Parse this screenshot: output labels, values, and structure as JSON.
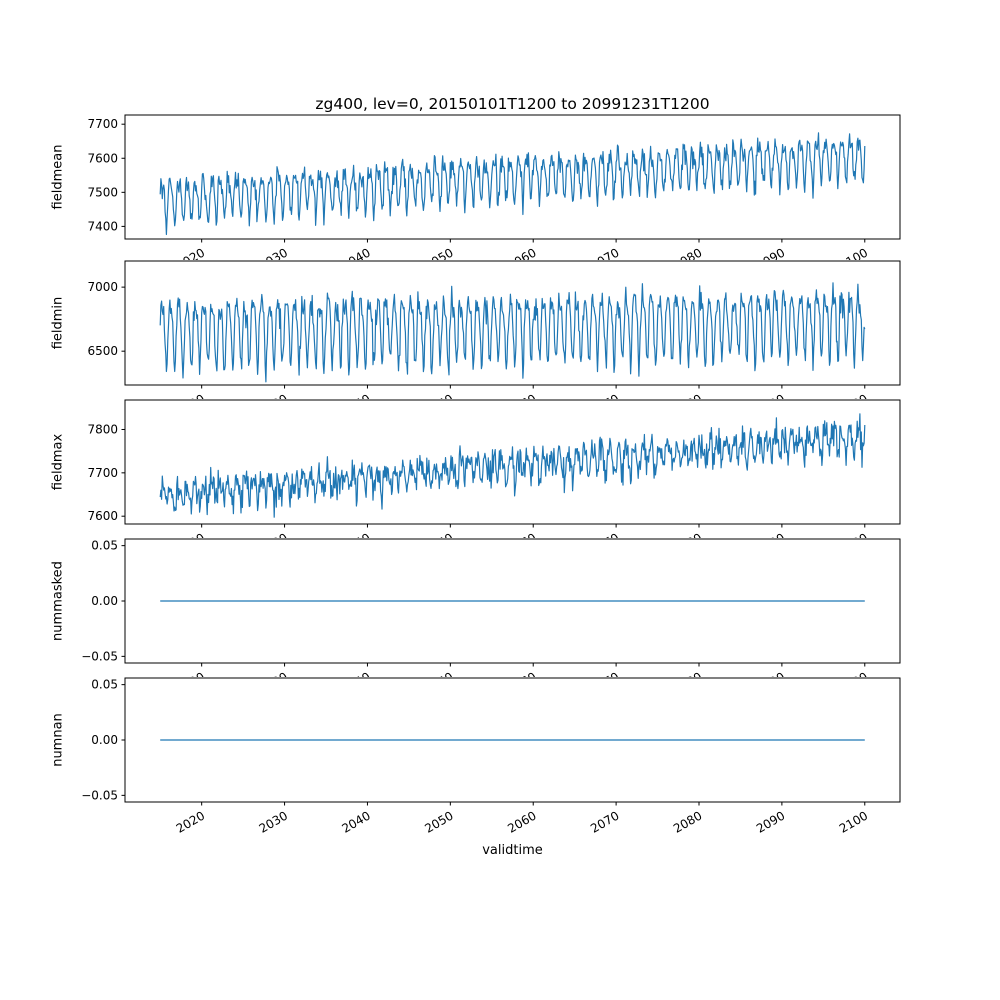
{
  "title": "zg400, lev=0, 20150101T1200 to 20991231T1200",
  "xlabel": "validtime",
  "line_color": "#1f77b4",
  "background_color": "#ffffff",
  "x_axis": {
    "label": "validtime",
    "xlim": [
      2010.75,
      2104.25
    ],
    "data_start": 2015,
    "data_end": 2100,
    "ticks": [
      2020,
      2030,
      2040,
      2050,
      2060,
      2070,
      2080,
      2090,
      2100
    ],
    "tick_labels": [
      "2020",
      "2030",
      "2040",
      "2050",
      "2060",
      "2070",
      "2080",
      "2090",
      "2100"
    ],
    "tick_rotation_deg": 30
  },
  "chart_data": [
    {
      "type": "line",
      "name": "fieldmean",
      "ylabel": "fieldmean",
      "ylim": [
        7363,
        7727
      ],
      "yticks": [
        7400,
        7500,
        7600,
        7700
      ],
      "ytick_labels": [
        "7400",
        "7500",
        "7600",
        "7700"
      ],
      "series_model": {
        "kind": "seasonal",
        "baseline_start": 7478,
        "baseline_end": 7608,
        "annual_amplitude": 55,
        "second_harmonic": 18,
        "noise_sd": 16,
        "samples_per_year": 12
      },
      "summary": "Annual oscillation between ~7380 and ~7560 in 2015 rising steadily to ~7550-7710 by 2100"
    },
    {
      "type": "line",
      "name": "fieldmin",
      "ylabel": "fieldmin",
      "ylim": [
        6236,
        7204
      ],
      "yticks": [
        6500,
        7000
      ],
      "ytick_labels": [
        "6500",
        "7000"
      ],
      "series_model": {
        "kind": "seasonal",
        "baseline_start": 6660,
        "baseline_end": 6740,
        "annual_amplitude": 230,
        "second_harmonic": 70,
        "noise_sd": 55,
        "samples_per_year": 12
      },
      "summary": "Dense oscillation between ~6280 and ~7050 with slight upward drift, peaks near 7150 late century"
    },
    {
      "type": "line",
      "name": "fieldmax",
      "ylabel": "fieldmax",
      "ylim": [
        7582,
        7868
      ],
      "yticks": [
        7600,
        7700,
        7800
      ],
      "ytick_labels": [
        "7600",
        "7700",
        "7800"
      ],
      "series_model": {
        "kind": "seasonal",
        "baseline_start": 7648,
        "baseline_end": 7782,
        "annual_amplitude": 22,
        "second_harmonic": 8,
        "noise_sd": 18,
        "samples_per_year": 12
      },
      "summary": "Noisy series between ~7600 and ~7700 in 2015 rising to ~7730-7850 by 2100"
    },
    {
      "type": "line",
      "name": "nummasked",
      "ylabel": "nummasked",
      "ylim": [
        -0.056,
        0.056
      ],
      "yticks": [
        -0.05,
        0,
        0.05
      ],
      "ytick_labels": [
        "−0.05",
        "0.00",
        "0.05"
      ],
      "series_model": {
        "kind": "flat",
        "value": 0,
        "samples_per_year": 12
      },
      "summary": "Constant zero line from 2015 to 2100"
    },
    {
      "type": "line",
      "name": "numnan",
      "ylabel": "numnan",
      "ylim": [
        -0.056,
        0.056
      ],
      "yticks": [
        -0.05,
        0,
        0.05
      ],
      "ytick_labels": [
        "−0.05",
        "0.00",
        "0.05"
      ],
      "series_model": {
        "kind": "flat",
        "value": 0,
        "samples_per_year": 12
      },
      "summary": "Constant zero line from 2015 to 2100"
    }
  ]
}
